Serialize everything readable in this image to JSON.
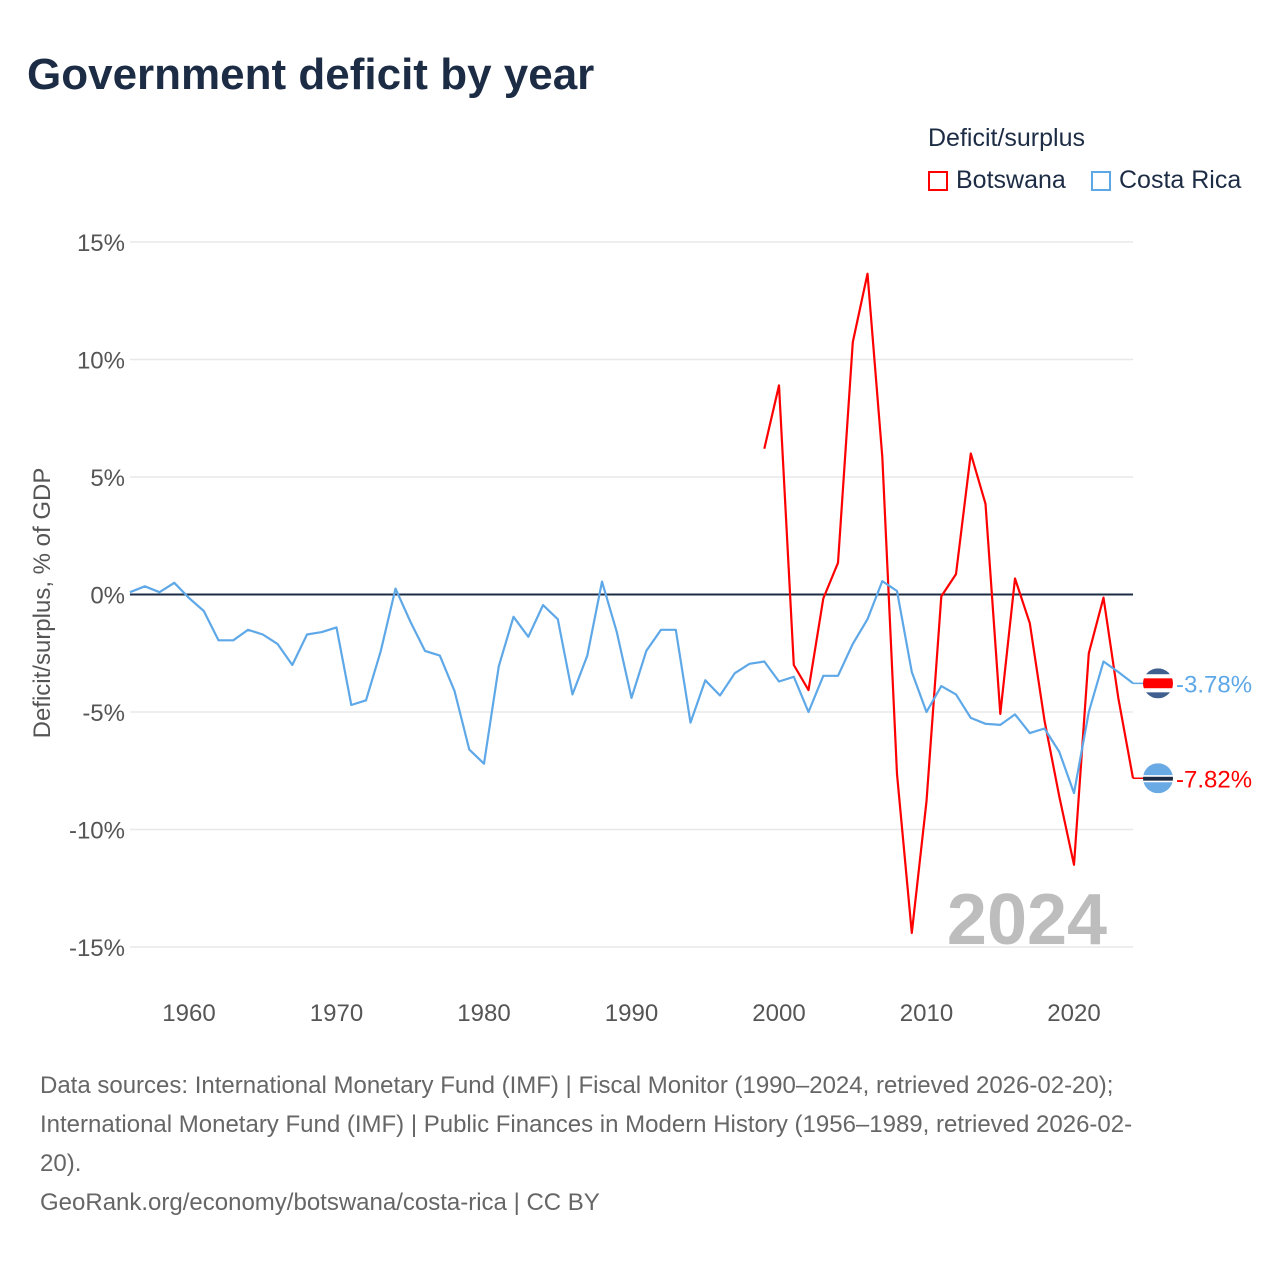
{
  "title": "Government deficit by year",
  "legend": {
    "title": "Deficit/surplus",
    "items": [
      {
        "name": "Botswana",
        "color": "#ff0000"
      },
      {
        "name": "Costa Rica",
        "color": "#5ea8e8"
      }
    ]
  },
  "watermark_year": "2024",
  "end_labels": [
    {
      "text": "-3.78%",
      "color": "#5ea8e8",
      "flag": "costa-rica-flag",
      "value": -3.78
    },
    {
      "text": "-7.82%",
      "color": "#ff0000",
      "flag": "botswana-flag",
      "value": -7.82
    }
  ],
  "chart_data": {
    "type": "line",
    "title": "Government deficit by year",
    "xlabel": "",
    "ylabel": "Deficit/surplus, % of GDP",
    "xlim": [
      1956,
      2024
    ],
    "ylim": [
      -15,
      15
    ],
    "yticks": [
      15,
      10,
      5,
      0,
      -5,
      -10,
      -15
    ],
    "ytick_labels": [
      "15%",
      "10%",
      "5%",
      "0%",
      "-5%",
      "-10%",
      "-15%"
    ],
    "xticks": [
      1960,
      1970,
      1980,
      1990,
      2000,
      2010,
      2020
    ],
    "xtick_labels": [
      "1960",
      "1970",
      "1980",
      "1990",
      "2000",
      "2010",
      "2020"
    ],
    "grid": true,
    "legend_position": "top-right",
    "series": [
      {
        "name": "Botswana",
        "color": "#ff0000",
        "start_year": 1999,
        "values": [
          6.2,
          8.9,
          -3.0,
          -4.07,
          -0.17,
          1.35,
          10.74,
          13.65,
          5.86,
          -7.64,
          -14.4,
          -8.8,
          -0.08,
          0.87,
          6.0,
          3.86,
          -5.08,
          0.68,
          -1.22,
          -5.36,
          -8.6,
          -11.5,
          -2.5,
          -0.13,
          -4.4,
          -7.82
        ]
      },
      {
        "name": "Costa Rica",
        "color": "#5ea8e8",
        "start_year": 1956,
        "values": [
          0.1,
          0.35,
          0.1,
          0.5,
          -0.15,
          -0.7,
          -1.95,
          -1.95,
          -1.5,
          -1.7,
          -2.1,
          -3.0,
          -1.7,
          -1.6,
          -1.4,
          -4.7,
          -4.5,
          -2.4,
          0.25,
          -1.15,
          -2.4,
          -2.6,
          -4.1,
          -6.6,
          -7.2,
          -3.05,
          -0.95,
          -1.8,
          -0.45,
          -1.05,
          -4.25,
          -2.6,
          0.55,
          -1.6,
          -4.4,
          -2.4,
          -1.5,
          -1.5,
          -5.45,
          -3.65,
          -4.3,
          -3.35,
          -2.95,
          -2.85,
          -3.7,
          -3.5,
          -5.0,
          -3.46,
          -3.46,
          -2.1,
          -1.05,
          0.57,
          0.15,
          -3.3,
          -5.0,
          -3.9,
          -4.25,
          -5.25,
          -5.5,
          -5.55,
          -5.1,
          -5.9,
          -5.7,
          -6.7,
          -8.45,
          -5.0,
          -2.85,
          -3.3,
          -3.78
        ]
      }
    ]
  },
  "sources": {
    "line1": "Data sources: International Monetary Fund (IMF) | Fiscal Monitor (1990–2024, retrieved 2026-02-20);",
    "line2": "International Monetary Fund (IMF) | Public Finances in Modern History (1956–1989, retrieved 2026-02-",
    "line3": "20).",
    "line4": "GeoRank.org/economy/botswana/costa-rica | CC BY"
  }
}
